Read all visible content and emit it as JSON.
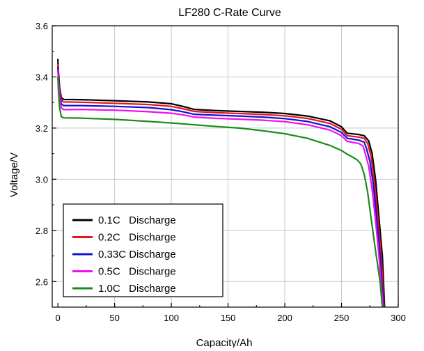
{
  "chart_data": {
    "type": "line",
    "title": "LF280 C-Rate Curve",
    "xlabel": "Capacity/Ah",
    "ylabel": "Voltage/V",
    "xlim": [
      -5,
      300
    ],
    "ylim": [
      2.5,
      3.6
    ],
    "x_ticks": [
      0,
      50,
      100,
      150,
      200,
      250,
      300
    ],
    "y_ticks": [
      2.6,
      2.8,
      3.0,
      3.2,
      3.4,
      3.6
    ],
    "x_tick_labels": [
      "0",
      "50",
      "100",
      "150",
      "200",
      "250",
      "300"
    ],
    "y_tick_labels": [
      "2.6",
      "2.8",
      "3.0",
      "3.2",
      "3.4",
      "3.6"
    ],
    "grid": true,
    "legend_position": "bottom-left",
    "series": [
      {
        "name": "0.1C   Discharge",
        "color": "#000000",
        "points": [
          [
            0,
            3.47
          ],
          [
            0.5,
            3.42
          ],
          [
            1.5,
            3.36
          ],
          [
            3,
            3.32
          ],
          [
            5,
            3.312
          ],
          [
            20,
            3.311
          ],
          [
            50,
            3.307
          ],
          [
            80,
            3.302
          ],
          [
            100,
            3.295
          ],
          [
            110,
            3.285
          ],
          [
            120,
            3.273
          ],
          [
            140,
            3.268
          ],
          [
            160,
            3.265
          ],
          [
            180,
            3.262
          ],
          [
            200,
            3.257
          ],
          [
            220,
            3.247
          ],
          [
            240,
            3.228
          ],
          [
            250,
            3.205
          ],
          [
            255,
            3.18
          ],
          [
            265,
            3.175
          ],
          [
            270,
            3.17
          ],
          [
            274,
            3.15
          ],
          [
            277,
            3.1
          ],
          [
            280,
            3.0
          ],
          [
            283,
            2.85
          ],
          [
            286,
            2.7
          ],
          [
            288,
            2.5
          ]
        ]
      },
      {
        "name": "0.2C   Discharge",
        "color": "#e8141c",
        "points": [
          [
            0,
            3.45
          ],
          [
            0.5,
            3.4
          ],
          [
            1.5,
            3.35
          ],
          [
            3,
            3.31
          ],
          [
            5,
            3.302
          ],
          [
            20,
            3.301
          ],
          [
            50,
            3.297
          ],
          [
            80,
            3.292
          ],
          [
            100,
            3.285
          ],
          [
            110,
            3.276
          ],
          [
            120,
            3.265
          ],
          [
            140,
            3.26
          ],
          [
            160,
            3.257
          ],
          [
            180,
            3.253
          ],
          [
            200,
            3.248
          ],
          [
            220,
            3.238
          ],
          [
            240,
            3.218
          ],
          [
            250,
            3.195
          ],
          [
            255,
            3.17
          ],
          [
            265,
            3.165
          ],
          [
            270,
            3.16
          ],
          [
            273,
            3.14
          ],
          [
            276,
            3.09
          ],
          [
            279,
            2.99
          ],
          [
            282,
            2.85
          ],
          [
            285,
            2.7
          ],
          [
            287.5,
            2.5
          ]
        ]
      },
      {
        "name": "0.33C Discharge",
        "color": "#1010d8",
        "points": [
          [
            0,
            3.44
          ],
          [
            0.5,
            3.39
          ],
          [
            1.5,
            3.34
          ],
          [
            3,
            3.295
          ],
          [
            5,
            3.288
          ],
          [
            20,
            3.288
          ],
          [
            50,
            3.285
          ],
          [
            80,
            3.28
          ],
          [
            100,
            3.272
          ],
          [
            110,
            3.264
          ],
          [
            120,
            3.254
          ],
          [
            140,
            3.25
          ],
          [
            160,
            3.247
          ],
          [
            180,
            3.243
          ],
          [
            200,
            3.237
          ],
          [
            220,
            3.226
          ],
          [
            240,
            3.205
          ],
          [
            250,
            3.183
          ],
          [
            255,
            3.16
          ],
          [
            265,
            3.153
          ],
          [
            270,
            3.145
          ],
          [
            272,
            3.12
          ],
          [
            275,
            3.07
          ],
          [
            278,
            2.98
          ],
          [
            281,
            2.85
          ],
          [
            284,
            2.7
          ],
          [
            287,
            2.5
          ]
        ]
      },
      {
        "name": "0.5C   Discharge",
        "color": "#ee10ee",
        "points": [
          [
            0,
            3.43
          ],
          [
            0.5,
            3.38
          ],
          [
            1.5,
            3.32
          ],
          [
            3,
            3.28
          ],
          [
            5,
            3.272
          ],
          [
            20,
            3.273
          ],
          [
            50,
            3.27
          ],
          [
            80,
            3.264
          ],
          [
            100,
            3.258
          ],
          [
            110,
            3.252
          ],
          [
            120,
            3.243
          ],
          [
            140,
            3.238
          ],
          [
            160,
            3.235
          ],
          [
            180,
            3.231
          ],
          [
            200,
            3.225
          ],
          [
            220,
            3.213
          ],
          [
            240,
            3.192
          ],
          [
            250,
            3.17
          ],
          [
            255,
            3.148
          ],
          [
            265,
            3.14
          ],
          [
            269,
            3.13
          ],
          [
            271,
            3.1
          ],
          [
            274,
            3.05
          ],
          [
            277,
            2.96
          ],
          [
            280,
            2.84
          ],
          [
            283,
            2.7
          ],
          [
            286.5,
            2.5
          ]
        ]
      },
      {
        "name": "1.0C   Discharge",
        "color": "#1a8c1a",
        "points": [
          [
            0,
            3.4
          ],
          [
            0.5,
            3.34
          ],
          [
            1.5,
            3.28
          ],
          [
            3,
            3.245
          ],
          [
            5,
            3.24
          ],
          [
            20,
            3.239
          ],
          [
            50,
            3.234
          ],
          [
            80,
            3.226
          ],
          [
            100,
            3.22
          ],
          [
            120,
            3.213
          ],
          [
            140,
            3.206
          ],
          [
            160,
            3.2
          ],
          [
            180,
            3.19
          ],
          [
            200,
            3.178
          ],
          [
            220,
            3.16
          ],
          [
            240,
            3.132
          ],
          [
            250,
            3.112
          ],
          [
            255,
            3.098
          ],
          [
            260,
            3.086
          ],
          [
            264,
            3.075
          ],
          [
            267,
            3.06
          ],
          [
            270,
            3.02
          ],
          [
            273,
            2.95
          ],
          [
            276,
            2.85
          ],
          [
            280,
            2.72
          ],
          [
            284,
            2.6
          ],
          [
            286,
            2.5
          ]
        ]
      }
    ]
  }
}
